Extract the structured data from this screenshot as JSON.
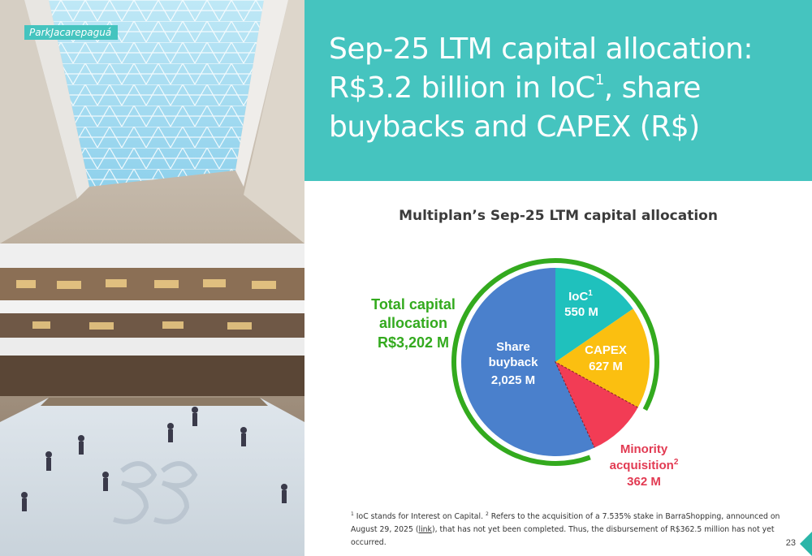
{
  "photo": {
    "caption": "ParkJacarepaguá"
  },
  "header": {
    "title_pre": "Sep-25 LTM capital allocation: R$3.2 billion in IoC",
    "title_sup": "1",
    "title_post": ", share buybacks and CAPEX (R$)"
  },
  "chart_title": "Multiplan’s Sep-25 LTM capital allocation",
  "total": {
    "line1": "Total capital",
    "line2": "allocation",
    "line3": "R$3,202 M"
  },
  "chart_data": {
    "type": "pie",
    "total": 3202,
    "unit": "M",
    "slices": [
      {
        "key": "ioc",
        "value": 550,
        "color": "#1fc1bd"
      },
      {
        "key": "capex",
        "value": 627,
        "color": "#fbbf10"
      },
      {
        "key": "minority",
        "value": 362,
        "color": "#f23c55"
      },
      {
        "key": "buyback",
        "value": 2025,
        "color": "#4a80cc"
      }
    ],
    "labels": {
      "ioc": {
        "name": "IoC",
        "sup": "1",
        "value": "550 M"
      },
      "capex": {
        "name": "CAPEX",
        "value": "627 M"
      },
      "buyback": {
        "line1": "Share",
        "line2": "buyback",
        "value": "2,025 M"
      },
      "minority": {
        "line1": "Minority",
        "line2": "acquisition",
        "sup": "2",
        "value": "362 M"
      }
    },
    "colors": {
      "ring": "#33aa1e",
      "total_text": "#33aa1e",
      "minority_text": "#e23a52"
    }
  },
  "footnote": {
    "sup1": "1",
    "text1": " IoC stands for Interest on Capital. ",
    "sup2": "2",
    "text2": " Refers to the acquisition of a 7.535% stake in BarraShopping, announced on August 29, 2025 (",
    "link": "link",
    "text3": "), that has not yet been completed. Thus, the disbursement of R$362.5 million has not yet occurred."
  },
  "page_number": "23",
  "colors": {
    "brand_teal": "#45c4bf",
    "corner_teal": "#2bb5a8"
  }
}
